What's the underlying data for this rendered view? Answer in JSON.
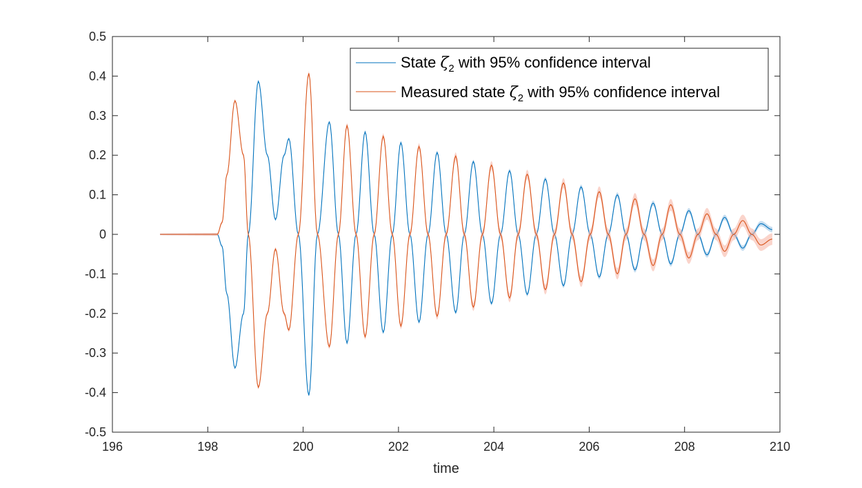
{
  "chart_data": {
    "type": "line",
    "title": "",
    "xlabel": "time",
    "ylabel": "",
    "xlim": [
      196,
      210
    ],
    "ylim": [
      -0.5,
      0.5
    ],
    "grid": false,
    "legend_position": "top-right",
    "xticks": [
      "196",
      "198",
      "200",
      "202",
      "204",
      "206",
      "208",
      "210"
    ],
    "yticks": [
      "0.5",
      "0.4",
      "0.3",
      "0.2",
      "0.1",
      "0",
      "-0.1",
      "-0.2",
      "-0.3",
      "-0.4",
      "-0.5"
    ],
    "series": [
      {
        "legend_prefix": "State ",
        "legend_symbol": "ζ",
        "legend_subscript": "2",
        "legend_suffix": " with 95% confidence interval",
        "color": "#0072BD",
        "band_color": "#9FC7E6",
        "sign": -1,
        "x": [
          197.0,
          198.2,
          198.3,
          198.4,
          198.57,
          198.75,
          198.85,
          199.06,
          199.25,
          199.42,
          199.6,
          199.7,
          199.9,
          200.12,
          200.3,
          200.55,
          200.74,
          200.92,
          201.11,
          201.3,
          201.49,
          201.68,
          201.87,
          202.05,
          202.24,
          202.43,
          202.62,
          202.81,
          203.0,
          203.2,
          203.38,
          203.57,
          203.76,
          203.95,
          204.14,
          204.33,
          204.51,
          204.7,
          204.89,
          205.08,
          205.27,
          205.46,
          205.64,
          205.83,
          206.02,
          206.21,
          206.4,
          206.59,
          206.77,
          206.96,
          207.15,
          207.34,
          207.53,
          207.71,
          207.9,
          208.09,
          208.28,
          208.47,
          208.66,
          208.84,
          209.03,
          209.22,
          209.41,
          209.6,
          209.84
        ],
        "y": [
          0,
          0,
          -0.03,
          -0.15,
          -0.338,
          -0.2,
          0.0,
          0.387,
          0.2,
          0.037,
          0.2,
          0.242,
          0.0,
          -0.407,
          0.0,
          0.284,
          0.0,
          -0.275,
          0.0,
          0.259,
          0.0,
          -0.248,
          0.0,
          0.232,
          0.0,
          -0.222,
          0.0,
          0.207,
          0.0,
          -0.198,
          0.0,
          0.184,
          0.0,
          -0.175,
          0.0,
          0.161,
          0.0,
          -0.152,
          0.0,
          0.14,
          0.0,
          -0.13,
          0.0,
          0.12,
          0.0,
          -0.108,
          0.0,
          0.1,
          0.0,
          -0.09,
          0.0,
          0.079,
          0.0,
          -0.075,
          0.0,
          0.06,
          0.0,
          -0.052,
          0.0,
          0.043,
          0.0,
          -0.035,
          0.0,
          0.027,
          0.012
        ]
      },
      {
        "legend_prefix": "Measured state ",
        "legend_symbol": "ζ",
        "legend_subscript": "2",
        "legend_suffix": " with 95% confidence interval",
        "color": "#D95319",
        "band_color": "#F6B8A8",
        "sign": 1,
        "x": [
          197.0,
          198.2,
          198.3,
          198.4,
          198.57,
          198.75,
          198.85,
          199.06,
          199.25,
          199.42,
          199.6,
          199.7,
          199.9,
          200.12,
          200.3,
          200.55,
          200.74,
          200.92,
          201.11,
          201.3,
          201.49,
          201.68,
          201.87,
          202.05,
          202.24,
          202.43,
          202.62,
          202.81,
          203.0,
          203.2,
          203.38,
          203.57,
          203.76,
          203.95,
          204.14,
          204.33,
          204.51,
          204.7,
          204.89,
          205.08,
          205.27,
          205.46,
          205.64,
          205.83,
          206.02,
          206.21,
          206.4,
          206.59,
          206.77,
          206.96,
          207.15,
          207.34,
          207.53,
          207.71,
          207.9,
          208.09,
          208.28,
          208.47,
          208.66,
          208.84,
          209.03,
          209.22,
          209.41,
          209.6,
          209.84
        ],
        "y": [
          0,
          0,
          0.03,
          0.15,
          0.338,
          0.2,
          0.0,
          -0.387,
          -0.2,
          -0.037,
          -0.2,
          -0.242,
          0.0,
          0.407,
          0.0,
          -0.284,
          0.0,
          0.275,
          0.0,
          -0.259,
          0.0,
          0.248,
          0.0,
          -0.232,
          0.0,
          0.222,
          0.0,
          -0.207,
          0.0,
          0.198,
          0.0,
          -0.184,
          0.0,
          0.175,
          0.0,
          -0.161,
          0.0,
          0.152,
          0.0,
          -0.14,
          0.0,
          0.13,
          0.0,
          -0.12,
          0.0,
          0.108,
          0.0,
          -0.1,
          0.0,
          0.09,
          0.0,
          -0.079,
          0.0,
          0.075,
          0.0,
          -0.06,
          0.0,
          0.052,
          0.0,
          -0.043,
          0.0,
          0.035,
          0.0,
          -0.027,
          -0.012
        ]
      }
    ]
  }
}
